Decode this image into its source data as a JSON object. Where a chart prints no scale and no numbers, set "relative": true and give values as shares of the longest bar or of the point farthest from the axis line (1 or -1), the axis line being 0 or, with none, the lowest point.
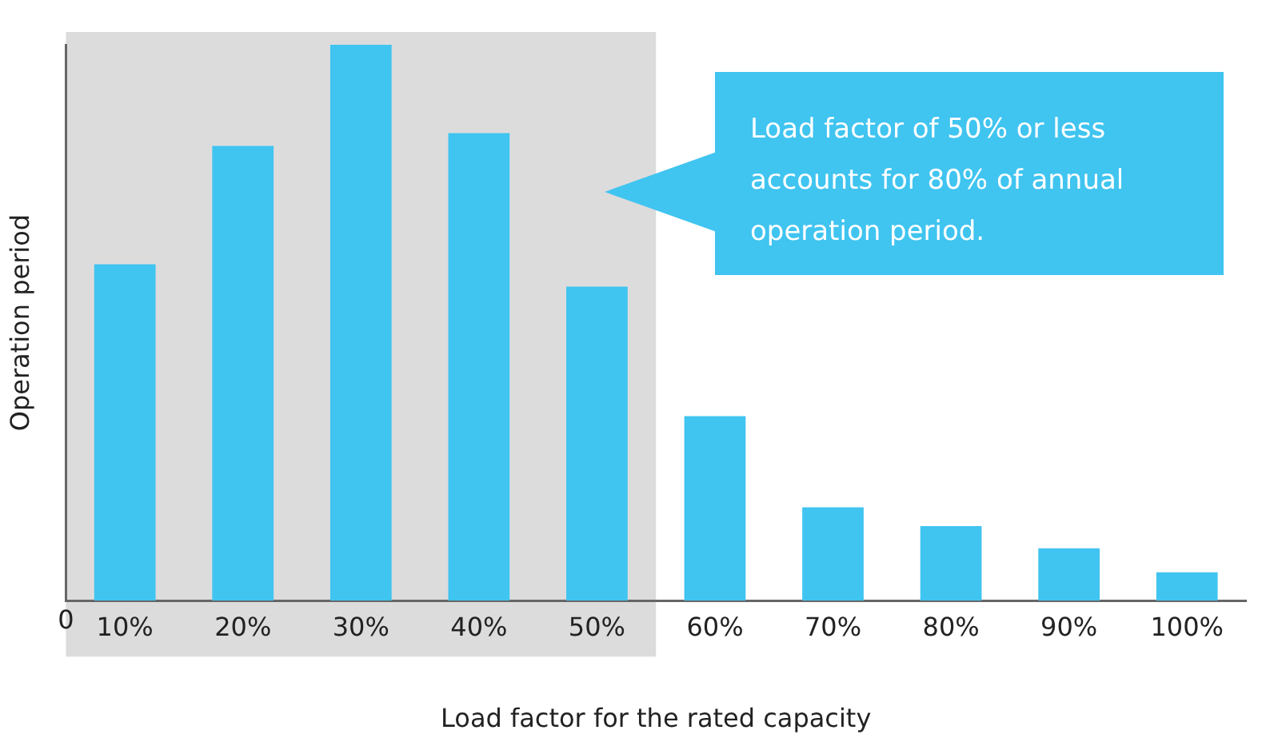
{
  "chart_data": {
    "type": "bar",
    "relative": true,
    "xlabel": "Load factor for the rated capacity",
    "ylabel": "Operation period",
    "categories": [
      "10%",
      "20%",
      "30%",
      "40%",
      "50%",
      "60%",
      "70%",
      "80%",
      "90%",
      "100%"
    ],
    "values": [
      0.605,
      0.818,
      1,
      0.841,
      0.565,
      0.332,
      0.168,
      0.134,
      0.094,
      0.051
    ],
    "color": "#40c4f0",
    "bands": [
      {
        "axis": "x",
        "from": "10%",
        "to": "50%",
        "color": "#dcdcdd"
      }
    ],
    "annotations": [
      "0",
      "Load factor of 50% or less accounts for 80% of annual operation period."
    ],
    "grid": false,
    "legend": false
  }
}
